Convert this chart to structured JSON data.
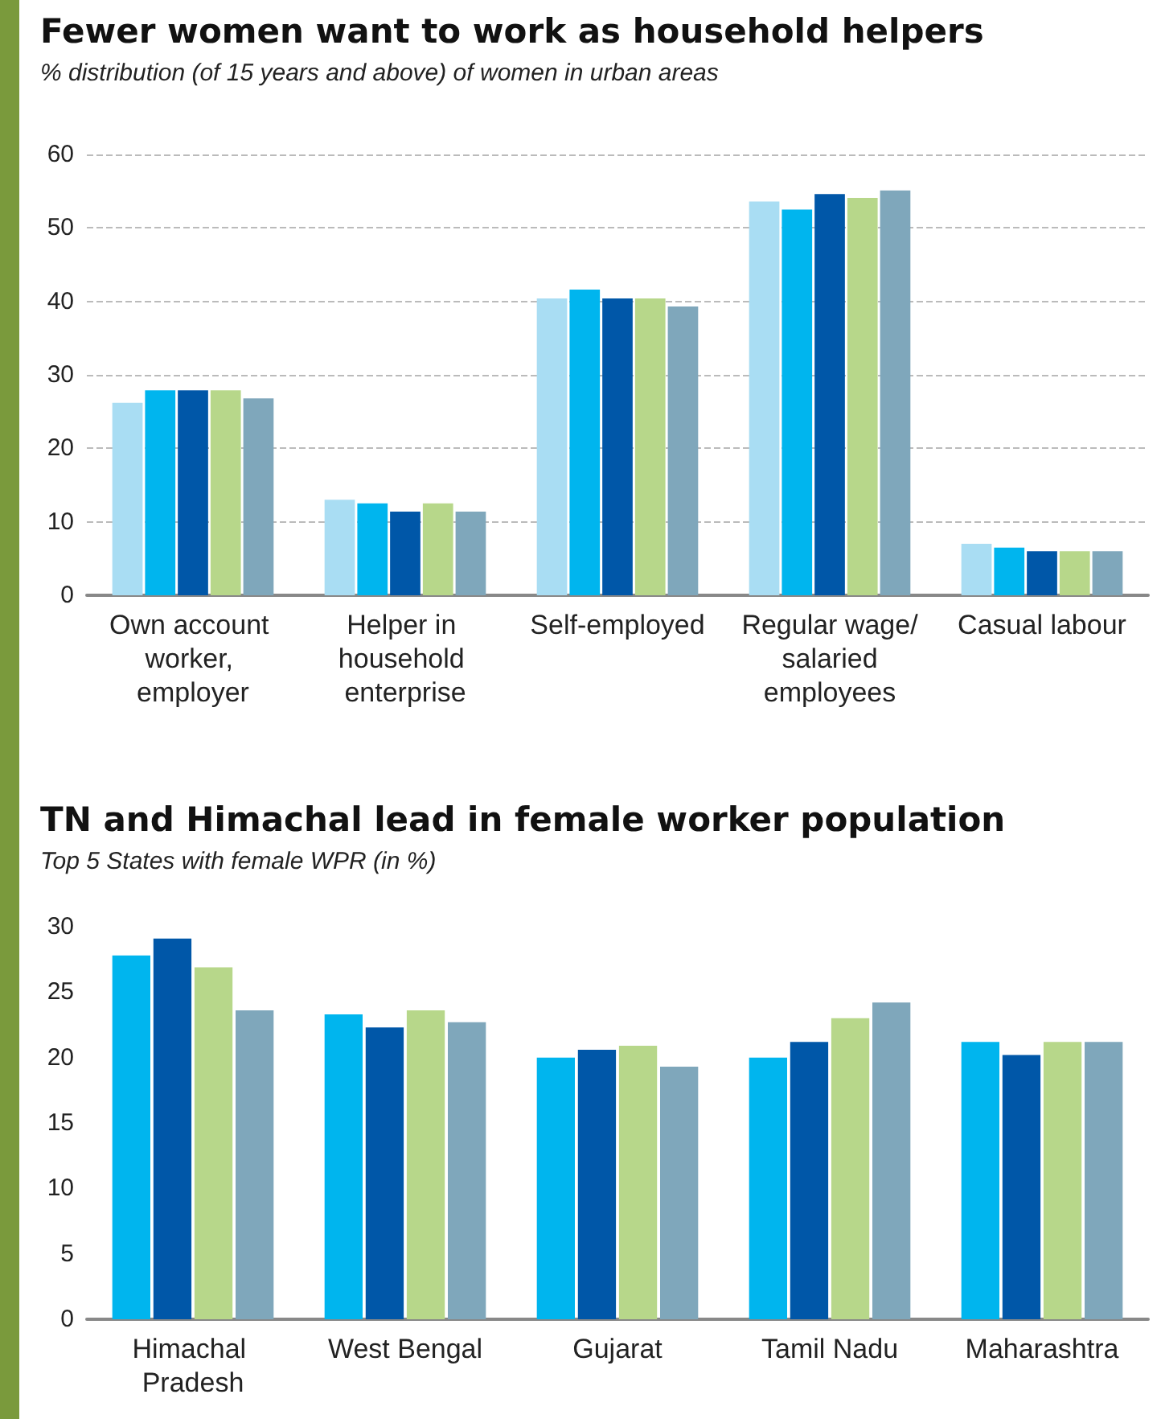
{
  "chart_data": [
    {
      "type": "bar",
      "title": "Fewer women want to work as household helpers",
      "subtitle": "% distribution (of 15 years and above) of women in urban areas",
      "categories": [
        "Own account worker, employer",
        "Helper in household enterprise",
        "Self-employed",
        "Regular wage/ salaried employees",
        "Casual labour"
      ],
      "series": [
        {
          "color": "#a9ddf3",
          "values": [
            26.2,
            13.0,
            40.4,
            53.6,
            7.0
          ]
        },
        {
          "color": "#00b5ee",
          "values": [
            27.9,
            12.5,
            41.6,
            52.5,
            6.5
          ]
        },
        {
          "color": "#0057a8",
          "values": [
            27.9,
            11.4,
            40.4,
            54.6,
            6.0
          ]
        },
        {
          "color": "#b7d78a",
          "values": [
            27.9,
            12.5,
            40.4,
            54.1,
            6.0
          ]
        },
        {
          "color": "#7fa7bb",
          "values": [
            26.8,
            11.4,
            39.3,
            55.1,
            6.0
          ]
        }
      ],
      "ylim": [
        0,
        60
      ],
      "yticks": [
        0,
        10,
        20,
        30,
        40,
        50,
        60
      ],
      "grid": "y"
    },
    {
      "type": "bar",
      "title": "TN and Himachal lead in female worker population",
      "subtitle": "Top 5 States with female WPR (in %)",
      "categories": [
        "Himachal Pradesh",
        "West Bengal",
        "Gujarat",
        "Tamil Nadu",
        "Maharashtra"
      ],
      "series": [
        {
          "color": "#00b5ee",
          "values": [
            27.8,
            23.3,
            20.0,
            20.0,
            21.2
          ]
        },
        {
          "color": "#0057a8",
          "values": [
            29.1,
            22.3,
            20.6,
            21.2,
            20.2
          ]
        },
        {
          "color": "#b7d78a",
          "values": [
            26.9,
            23.6,
            20.9,
            23.0,
            21.2
          ]
        },
        {
          "color": "#7fa7bb",
          "values": [
            23.6,
            22.7,
            19.3,
            24.2,
            21.2
          ]
        }
      ],
      "ylim": [
        0,
        30
      ],
      "yticks": [
        0,
        5,
        10,
        15,
        20,
        25,
        30
      ],
      "grid": false
    }
  ]
}
